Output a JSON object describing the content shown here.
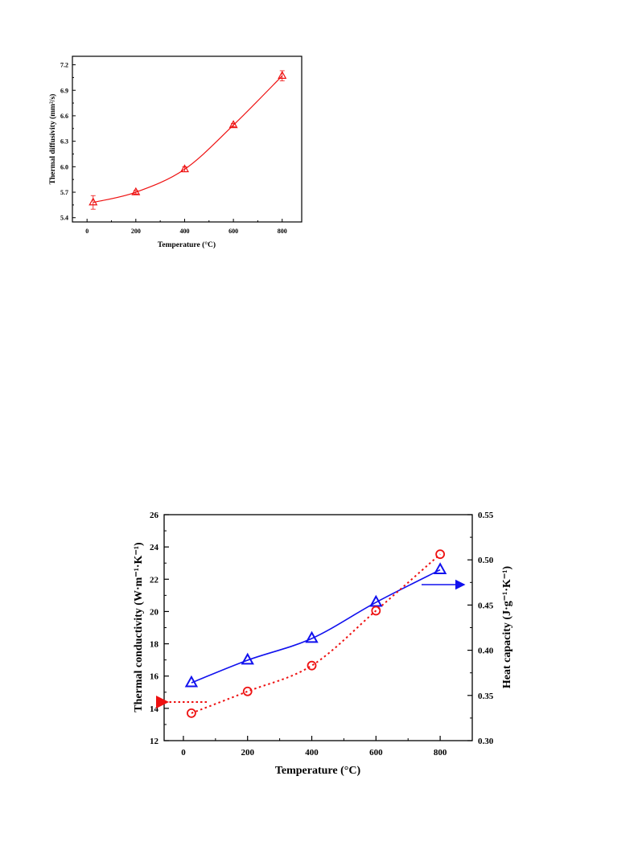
{
  "colors": {
    "red": "#ee1111",
    "blue": "#1111ee",
    "axis": "#000000"
  },
  "chart_data": [
    {
      "type": "scatter",
      "xlabel": "Temperature (°C)",
      "ylabel": "Thermal diffusivity (mm²/s)",
      "xlim": [
        -60,
        880
      ],
      "ylim": [
        5.35,
        7.3
      ],
      "xticks": [
        0,
        200,
        400,
        600,
        800
      ],
      "yticks": [
        5.4,
        5.7,
        6.0,
        6.3,
        6.6,
        6.9,
        7.2
      ],
      "ytick_labels": [
        "5.4",
        "5.7",
        "6.0",
        "6.3",
        "6.6",
        "6.9",
        "7.2"
      ],
      "series": [
        {
          "x": [
            25,
            200,
            400,
            600,
            800
          ],
          "y": [
            5.58,
            5.7,
            5.97,
            6.49,
            7.07
          ],
          "y_err": [
            0.08,
            0.02,
            0.03,
            0.02,
            0.06
          ],
          "marker": "triangle",
          "color": "#ee1111",
          "fit": "smooth"
        }
      ]
    },
    {
      "type": "scatter",
      "xlabel": "Temperature (°C)",
      "ylabel": "Thermal conductivity (W·m⁻¹·K⁻¹)",
      "y2label": "Heat capacity (J·g⁻¹·K⁻¹)",
      "xlim": [
        -60,
        900
      ],
      "ylim": [
        12,
        26
      ],
      "y2lim": [
        0.3,
        0.55
      ],
      "xticks": [
        0,
        200,
        400,
        600,
        800
      ],
      "yticks": [
        12,
        14,
        16,
        18,
        20,
        22,
        24,
        26
      ],
      "y2ticks": [
        0.3,
        0.35,
        0.4,
        0.45,
        0.5,
        0.55
      ],
      "y2tick_labels": [
        "0.30",
        "0.35",
        "0.40",
        "0.45",
        "0.50",
        "0.55"
      ],
      "series": [
        {
          "axis": "right",
          "x": [
            25,
            200,
            400,
            600,
            800
          ],
          "y": [
            0.364,
            0.389,
            0.413,
            0.453,
            0.489
          ],
          "marker": "triangle",
          "color": "#1111ee",
          "line": "solid"
        },
        {
          "axis": "left",
          "x": [
            25,
            200,
            400,
            600,
            800
          ],
          "y": [
            13.7,
            15.05,
            16.65,
            20.05,
            23.55
          ],
          "marker": "circle",
          "color": "#ee1111",
          "line": "dotted"
        }
      ],
      "annotations": [
        {
          "type": "arrow",
          "direction": "left",
          "color": "#ee1111",
          "style": "dotted",
          "points_to_axis": "left"
        },
        {
          "type": "arrow",
          "direction": "right",
          "color": "#1111ee",
          "style": "solid",
          "points_to_axis": "right"
        }
      ]
    }
  ]
}
